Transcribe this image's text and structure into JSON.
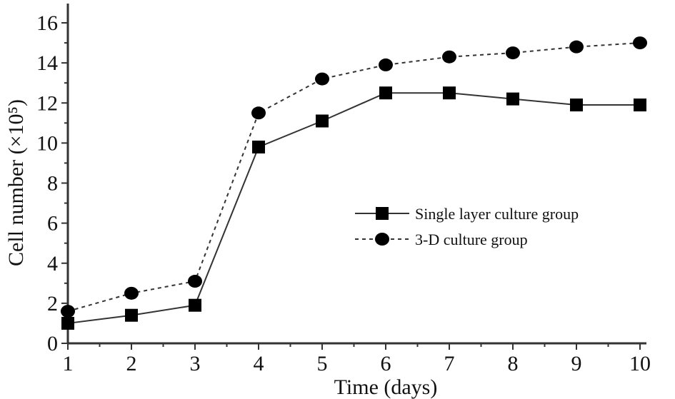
{
  "chart_data": {
    "type": "line",
    "title": "",
    "xlabel": "Time (days)",
    "ylabel": "Cell number (×10⁵)",
    "x": [
      1,
      2,
      3,
      4,
      5,
      6,
      7,
      8,
      9,
      10
    ],
    "xlim": [
      1,
      10
    ],
    "ylim": [
      0,
      16
    ],
    "xticks": [
      "1",
      "2",
      "3",
      "4",
      "5",
      "6",
      "7",
      "8",
      "9",
      "10"
    ],
    "yticks": [
      "0",
      "2",
      "4",
      "6",
      "8",
      "10",
      "12",
      "14",
      "16"
    ],
    "grid": false,
    "legend_position": "center-right",
    "series": [
      {
        "name": "Single layer culture group",
        "marker": "square",
        "line": "solid",
        "values": [
          1.0,
          1.4,
          1.9,
          9.8,
          11.1,
          12.5,
          12.5,
          12.2,
          11.9,
          11.9
        ]
      },
      {
        "name": "3-D culture group",
        "marker": "circle",
        "line": "dotted",
        "values": [
          1.6,
          2.5,
          3.1,
          11.5,
          13.2,
          13.9,
          14.3,
          14.5,
          14.8,
          15.0
        ]
      }
    ]
  }
}
